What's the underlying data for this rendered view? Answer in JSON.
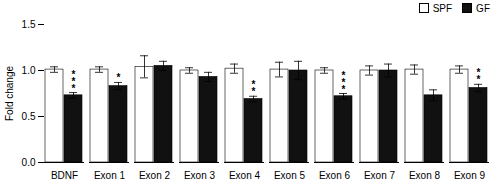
{
  "chart_data": {
    "type": "bar",
    "categories": [
      "BDNF",
      "Exon 1",
      "Exon 2",
      "Exon 3",
      "Exon 4",
      "Exon 5",
      "Exon 6",
      "Exon 7",
      "Exon 8",
      "Exon 9"
    ],
    "series": [
      {
        "name": "SPF",
        "color": "#ffffff",
        "values": [
          1.01,
          1.01,
          1.04,
          1.0,
          1.02,
          1.01,
          1.0,
          1.0,
          1.01,
          1.01
        ],
        "errors": [
          0.03,
          0.03,
          0.12,
          0.03,
          0.05,
          0.08,
          0.03,
          0.05,
          0.05,
          0.04
        ]
      },
      {
        "name": "GF",
        "color": "#111111",
        "values": [
          0.73,
          0.83,
          1.05,
          0.93,
          0.69,
          1.0,
          0.72,
          1.0,
          0.73,
          0.81
        ],
        "errors": [
          0.03,
          0.04,
          0.05,
          0.05,
          0.03,
          0.1,
          0.03,
          0.07,
          0.06,
          0.04
        ],
        "significance": [
          "***",
          "*",
          null,
          null,
          "**",
          null,
          "***",
          null,
          null,
          "**"
        ]
      }
    ],
    "ylabel": "Fold change",
    "ylim": [
      0.0,
      1.5
    ],
    "yticks": [
      {
        "value": 0.0,
        "label": "0.0"
      },
      {
        "value": 0.5,
        "label": "0.5"
      },
      {
        "value": 1.0,
        "label": "1.0"
      },
      {
        "value": 1.5,
        "label": "1.5"
      }
    ],
    "legend": "upper right"
  }
}
